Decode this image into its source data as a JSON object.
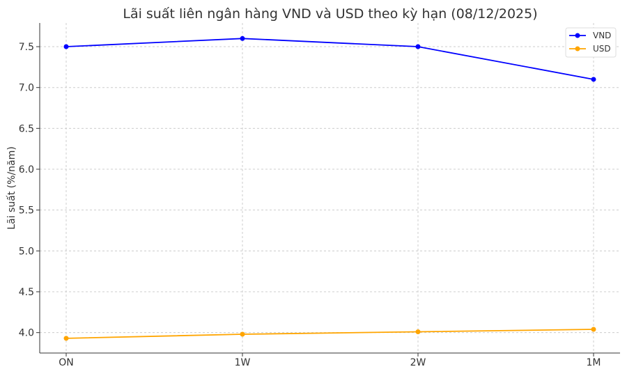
{
  "chart_data": {
    "type": "line",
    "title": "Lãi suất liên ngân hàng VND và USD theo kỳ hạn (08/12/2025)",
    "xlabel": "",
    "ylabel": "Lãi suất (%/năm)",
    "categories": [
      "ON",
      "1W",
      "2W",
      "1M"
    ],
    "yticks": [
      "4.0",
      "4.5",
      "5.0",
      "5.5",
      "6.0",
      "6.5",
      "7.0",
      "7.5"
    ],
    "ylim": [
      3.75,
      7.79
    ],
    "grid": true,
    "legend": "top-right",
    "series": [
      {
        "name": "VND",
        "color": "#0000ff",
        "values": [
          7.5,
          7.6,
          7.5,
          7.1
        ]
      },
      {
        "name": "USD",
        "color": "#ffa500",
        "values": [
          3.93,
          3.98,
          4.01,
          4.04
        ]
      }
    ]
  }
}
